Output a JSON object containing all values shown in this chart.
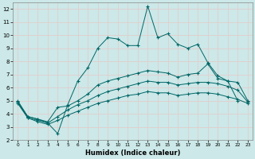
{
  "xlabel": "Humidex (Indice chaleur)",
  "bg_color": "#cce8e8",
  "line_color": "#006666",
  "grid_color": "#e8c8c8",
  "xlim": [
    -0.5,
    23.5
  ],
  "ylim": [
    2,
    12.5
  ],
  "xticks": [
    0,
    1,
    2,
    3,
    4,
    5,
    6,
    7,
    8,
    9,
    10,
    11,
    12,
    13,
    14,
    15,
    16,
    17,
    18,
    19,
    20,
    21,
    22,
    23
  ],
  "yticks": [
    2,
    3,
    4,
    5,
    6,
    7,
    8,
    9,
    10,
    11,
    12
  ],
  "line1_y": [
    5.0,
    3.8,
    3.6,
    3.3,
    2.5,
    4.7,
    6.5,
    7.5,
    9.0,
    9.8,
    9.7,
    9.2,
    9.2,
    12.2,
    9.8,
    10.1,
    9.3,
    9.0,
    9.3,
    7.9,
    6.9,
    6.5,
    5.0,
    null
  ],
  "line2_y": [
    4.9,
    3.8,
    3.6,
    3.4,
    4.5,
    4.6,
    5.0,
    5.5,
    6.2,
    6.5,
    6.7,
    6.9,
    7.1,
    7.3,
    7.2,
    7.1,
    6.8,
    7.0,
    7.1,
    7.8,
    6.7,
    6.5,
    6.4,
    5.0
  ],
  "line3_y": [
    4.9,
    3.7,
    3.5,
    3.3,
    3.8,
    4.3,
    4.7,
    5.0,
    5.4,
    5.7,
    5.9,
    6.1,
    6.3,
    6.5,
    6.4,
    6.4,
    6.2,
    6.3,
    6.4,
    6.4,
    6.3,
    6.1,
    5.8,
    4.9
  ],
  "line4_y": [
    4.8,
    3.7,
    3.4,
    3.2,
    3.5,
    3.9,
    4.2,
    4.5,
    4.8,
    5.0,
    5.2,
    5.4,
    5.5,
    5.7,
    5.6,
    5.6,
    5.4,
    5.5,
    5.6,
    5.6,
    5.5,
    5.3,
    5.1,
    4.8
  ]
}
